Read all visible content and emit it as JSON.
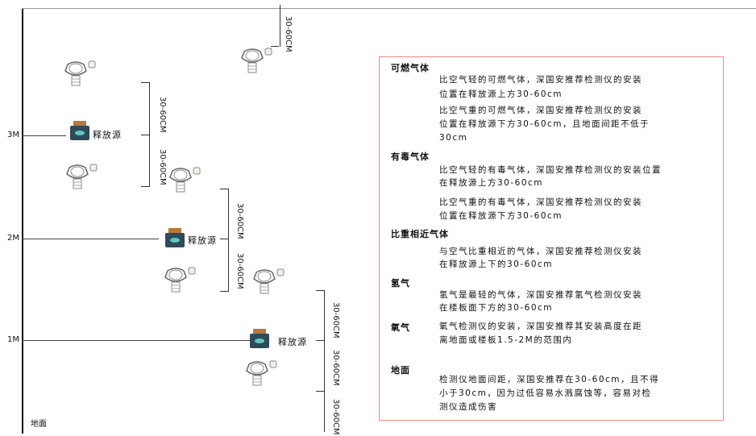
{
  "levels": {
    "l3": "3M",
    "l2": "2M",
    "l1": "1M",
    "ground": "地面"
  },
  "source_label": "释放源",
  "dim_label": "30-60CM",
  "notes": {
    "combustible": {
      "title": "可燃气体",
      "light": [
        "比空气轻的可燃气体，深国安推荐检测仪的安装",
        "位置在释放源上方30-60cm"
      ],
      "heavy": [
        "比空气重的可燃气体，深国安推荐检测仪的安装",
        "位置在释放源下方30-60cm，且地面间距不低于",
        "30cm"
      ]
    },
    "toxic": {
      "title": "有毒气体",
      "light": [
        "比空气轻的有毒气体，深国安推荐检测仪的安装位置",
        "在释放源上方30-60cm"
      ],
      "heavy": [
        "比空气重的有毒气体，深国安推荐检测仪的安装",
        "位置在释放源下方30-60cm"
      ]
    },
    "similar": {
      "title": "比重相近气体",
      "text": [
        "与空气比重相近的气体，深国安推荐检测仪安装",
        "在释放源上下的30-60cm"
      ]
    },
    "hydrogen": {
      "title": "氢气",
      "text": [
        "氢气是最轻的气体，深国安推荐氢气检测仪安装",
        "在楼板面下方的30-60cm"
      ]
    },
    "oxygen": {
      "title": "氧气",
      "text": [
        "氧气检测仪的安装，深国安推荐其安装高度在距",
        "离地面或楼板1.5-2M的范围内"
      ]
    },
    "ground": {
      "title": "地面",
      "text": [
        "检测仪地面间距，深国安推荐在30-60cm，且不得",
        "小于30cm，因为过低容易水溅腐蚀等，容易对检",
        "测仪造成伤害"
      ]
    }
  },
  "colors": {
    "box_border": "#e88888",
    "source_body": "#2f4a5a",
    "source_cap": "#b9783a",
    "detector": "#666666"
  }
}
